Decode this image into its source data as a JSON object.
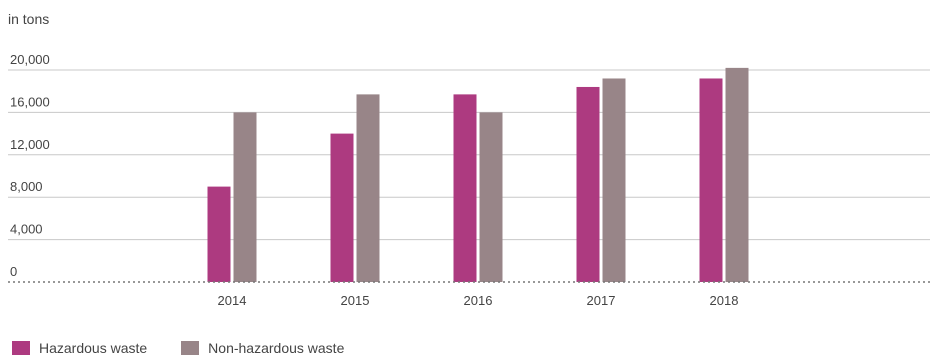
{
  "chart_data": {
    "type": "bar",
    "unit_label": "in tons",
    "categories": [
      "2014",
      "2015",
      "2016",
      "2017",
      "2018"
    ],
    "y_ticks": [
      0,
      4000,
      8000,
      12000,
      16000,
      20000
    ],
    "y_tick_labels": [
      "0",
      "4,000",
      "8,000",
      "12,000",
      "16,000",
      "20,000"
    ],
    "ylim": [
      0,
      20000
    ],
    "grid": true,
    "legend_position": "bottom-left",
    "series": [
      {
        "name": "Hazardous waste",
        "color": "#ad3a80",
        "values": [
          9000,
          14000,
          17700,
          18400,
          19200
        ]
      },
      {
        "name": "Non-hazardous waste",
        "color": "#988588",
        "values": [
          16000,
          17700,
          16000,
          19200,
          20200
        ]
      }
    ]
  }
}
